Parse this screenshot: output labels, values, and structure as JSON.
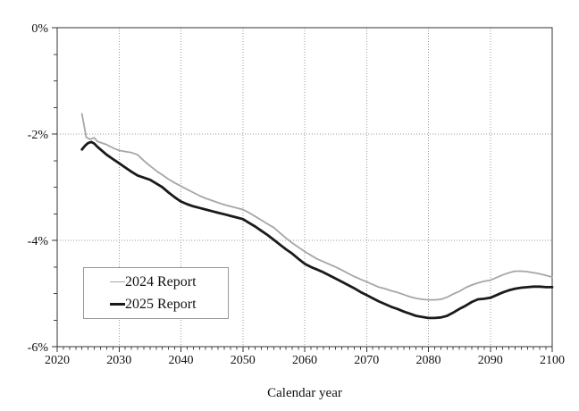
{
  "figure": {
    "background": "#ffffff",
    "plot_border_color": "#333333",
    "grid_color": "#999999",
    "tick_color": "#444444",
    "text_color": "#111111"
  },
  "chart_data": {
    "type": "line",
    "title": "",
    "xlabel": "Calendar year",
    "ylabel": "",
    "xlim": [
      2020,
      2100
    ],
    "ylim": [
      -6,
      0
    ],
    "x_major_ticks": [
      2020,
      2030,
      2040,
      2050,
      2060,
      2070,
      2080,
      2090,
      2100
    ],
    "x_tick_labels": [
      "2020",
      "2030",
      "2040",
      "2050",
      "2060",
      "2070",
      "2080",
      "2090",
      "2100"
    ],
    "x_minor_step": 1,
    "y_major_ticks": [
      0,
      -2,
      -4,
      -6
    ],
    "y_tick_labels": [
      "0%",
      "-2%",
      "-4%",
      "-6%"
    ],
    "y_minor_step": 0.5,
    "grid": {
      "style": "dotted",
      "color": "#999999",
      "x_lines": [
        2030,
        2040,
        2050,
        2060,
        2070,
        2080,
        2090
      ],
      "y_lines": [
        -2,
        -4
      ]
    },
    "legend_position": "lower-left",
    "series": [
      {
        "name": "2024 Report",
        "color": "#a6a6a6",
        "width": 1.8,
        "points": [
          [
            2024,
            -1.62
          ],
          [
            2024.7,
            -2.06
          ],
          [
            2025.3,
            -2.1
          ],
          [
            2026,
            -2.07
          ],
          [
            2026.5,
            -2.14
          ],
          [
            2027,
            -2.16
          ],
          [
            2028,
            -2.2
          ],
          [
            2029,
            -2.26
          ],
          [
            2030,
            -2.31
          ],
          [
            2031,
            -2.33
          ],
          [
            2032,
            -2.35
          ],
          [
            2033,
            -2.39
          ],
          [
            2034,
            -2.5
          ],
          [
            2035,
            -2.6
          ],
          [
            2036,
            -2.69
          ],
          [
            2037,
            -2.77
          ],
          [
            2038,
            -2.85
          ],
          [
            2039,
            -2.92
          ],
          [
            2040,
            -2.98
          ],
          [
            2041,
            -3.04
          ],
          [
            2042,
            -3.1
          ],
          [
            2043,
            -3.16
          ],
          [
            2044,
            -3.21
          ],
          [
            2045,
            -3.25
          ],
          [
            2046,
            -3.29
          ],
          [
            2047,
            -3.33
          ],
          [
            2048,
            -3.36
          ],
          [
            2049,
            -3.39
          ],
          [
            2050,
            -3.42
          ],
          [
            2051,
            -3.48
          ],
          [
            2052,
            -3.55
          ],
          [
            2053,
            -3.62
          ],
          [
            2054,
            -3.69
          ],
          [
            2055,
            -3.76
          ],
          [
            2056,
            -3.86
          ],
          [
            2057,
            -3.96
          ],
          [
            2058,
            -4.05
          ],
          [
            2059,
            -4.13
          ],
          [
            2060,
            -4.21
          ],
          [
            2061,
            -4.28
          ],
          [
            2062,
            -4.35
          ],
          [
            2063,
            -4.4
          ],
          [
            2064,
            -4.45
          ],
          [
            2065,
            -4.5
          ],
          [
            2066,
            -4.56
          ],
          [
            2067,
            -4.62
          ],
          [
            2068,
            -4.68
          ],
          [
            2069,
            -4.73
          ],
          [
            2070,
            -4.78
          ],
          [
            2071,
            -4.83
          ],
          [
            2072,
            -4.88
          ],
          [
            2073,
            -4.91
          ],
          [
            2074,
            -4.95
          ],
          [
            2075,
            -4.98
          ],
          [
            2076,
            -5.02
          ],
          [
            2077,
            -5.06
          ],
          [
            2078,
            -5.09
          ],
          [
            2079,
            -5.11
          ],
          [
            2080,
            -5.12
          ],
          [
            2081,
            -5.12
          ],
          [
            2082,
            -5.11
          ],
          [
            2083,
            -5.07
          ],
          [
            2084,
            -5.01
          ],
          [
            2085,
            -4.96
          ],
          [
            2086,
            -4.89
          ],
          [
            2087,
            -4.84
          ],
          [
            2088,
            -4.8
          ],
          [
            2089,
            -4.77
          ],
          [
            2090,
            -4.75
          ],
          [
            2091,
            -4.7
          ],
          [
            2092,
            -4.65
          ],
          [
            2093,
            -4.61
          ],
          [
            2094,
            -4.58
          ],
          [
            2095,
            -4.58
          ],
          [
            2096,
            -4.59
          ],
          [
            2097,
            -4.61
          ],
          [
            2098,
            -4.63
          ],
          [
            2099,
            -4.66
          ],
          [
            2100,
            -4.69
          ]
        ]
      },
      {
        "name": "2025 Report",
        "color": "#1a1a1a",
        "width": 2.8,
        "points": [
          [
            2024,
            -2.29
          ],
          [
            2024.5,
            -2.22
          ],
          [
            2025,
            -2.17
          ],
          [
            2025.5,
            -2.15
          ],
          [
            2026,
            -2.18
          ],
          [
            2026.5,
            -2.24
          ],
          [
            2027,
            -2.29
          ],
          [
            2028,
            -2.39
          ],
          [
            2029,
            -2.47
          ],
          [
            2030,
            -2.55
          ],
          [
            2031,
            -2.63
          ],
          [
            2032,
            -2.71
          ],
          [
            2033,
            -2.78
          ],
          [
            2034,
            -2.82
          ],
          [
            2035,
            -2.86
          ],
          [
            2036,
            -2.93
          ],
          [
            2037,
            -3.0
          ],
          [
            2038,
            -3.1
          ],
          [
            2039,
            -3.19
          ],
          [
            2040,
            -3.27
          ],
          [
            2041,
            -3.32
          ],
          [
            2042,
            -3.36
          ],
          [
            2043,
            -3.39
          ],
          [
            2044,
            -3.42
          ],
          [
            2045,
            -3.45
          ],
          [
            2046,
            -3.48
          ],
          [
            2047,
            -3.51
          ],
          [
            2048,
            -3.54
          ],
          [
            2049,
            -3.57
          ],
          [
            2050,
            -3.6
          ],
          [
            2051,
            -3.67
          ],
          [
            2052,
            -3.74
          ],
          [
            2053,
            -3.82
          ],
          [
            2054,
            -3.9
          ],
          [
            2055,
            -3.99
          ],
          [
            2056,
            -4.08
          ],
          [
            2057,
            -4.17
          ],
          [
            2058,
            -4.25
          ],
          [
            2059,
            -4.35
          ],
          [
            2060,
            -4.44
          ],
          [
            2061,
            -4.5
          ],
          [
            2062,
            -4.55
          ],
          [
            2063,
            -4.6
          ],
          [
            2064,
            -4.66
          ],
          [
            2065,
            -4.72
          ],
          [
            2066,
            -4.78
          ],
          [
            2067,
            -4.84
          ],
          [
            2068,
            -4.9
          ],
          [
            2069,
            -4.97
          ],
          [
            2070,
            -5.03
          ],
          [
            2071,
            -5.09
          ],
          [
            2072,
            -5.15
          ],
          [
            2073,
            -5.2
          ],
          [
            2074,
            -5.25
          ],
          [
            2075,
            -5.29
          ],
          [
            2076,
            -5.34
          ],
          [
            2077,
            -5.38
          ],
          [
            2078,
            -5.42
          ],
          [
            2079,
            -5.44
          ],
          [
            2080,
            -5.46
          ],
          [
            2081,
            -5.46
          ],
          [
            2082,
            -5.45
          ],
          [
            2083,
            -5.42
          ],
          [
            2084,
            -5.36
          ],
          [
            2085,
            -5.29
          ],
          [
            2086,
            -5.23
          ],
          [
            2087,
            -5.16
          ],
          [
            2088,
            -5.11
          ],
          [
            2089,
            -5.1
          ],
          [
            2090,
            -5.08
          ],
          [
            2091,
            -5.03
          ],
          [
            2092,
            -4.98
          ],
          [
            2093,
            -4.94
          ],
          [
            2094,
            -4.91
          ],
          [
            2095,
            -4.89
          ],
          [
            2096,
            -4.88
          ],
          [
            2097,
            -4.87
          ],
          [
            2098,
            -4.87
          ],
          [
            2099,
            -4.88
          ],
          [
            2100,
            -4.88
          ]
        ]
      }
    ]
  }
}
